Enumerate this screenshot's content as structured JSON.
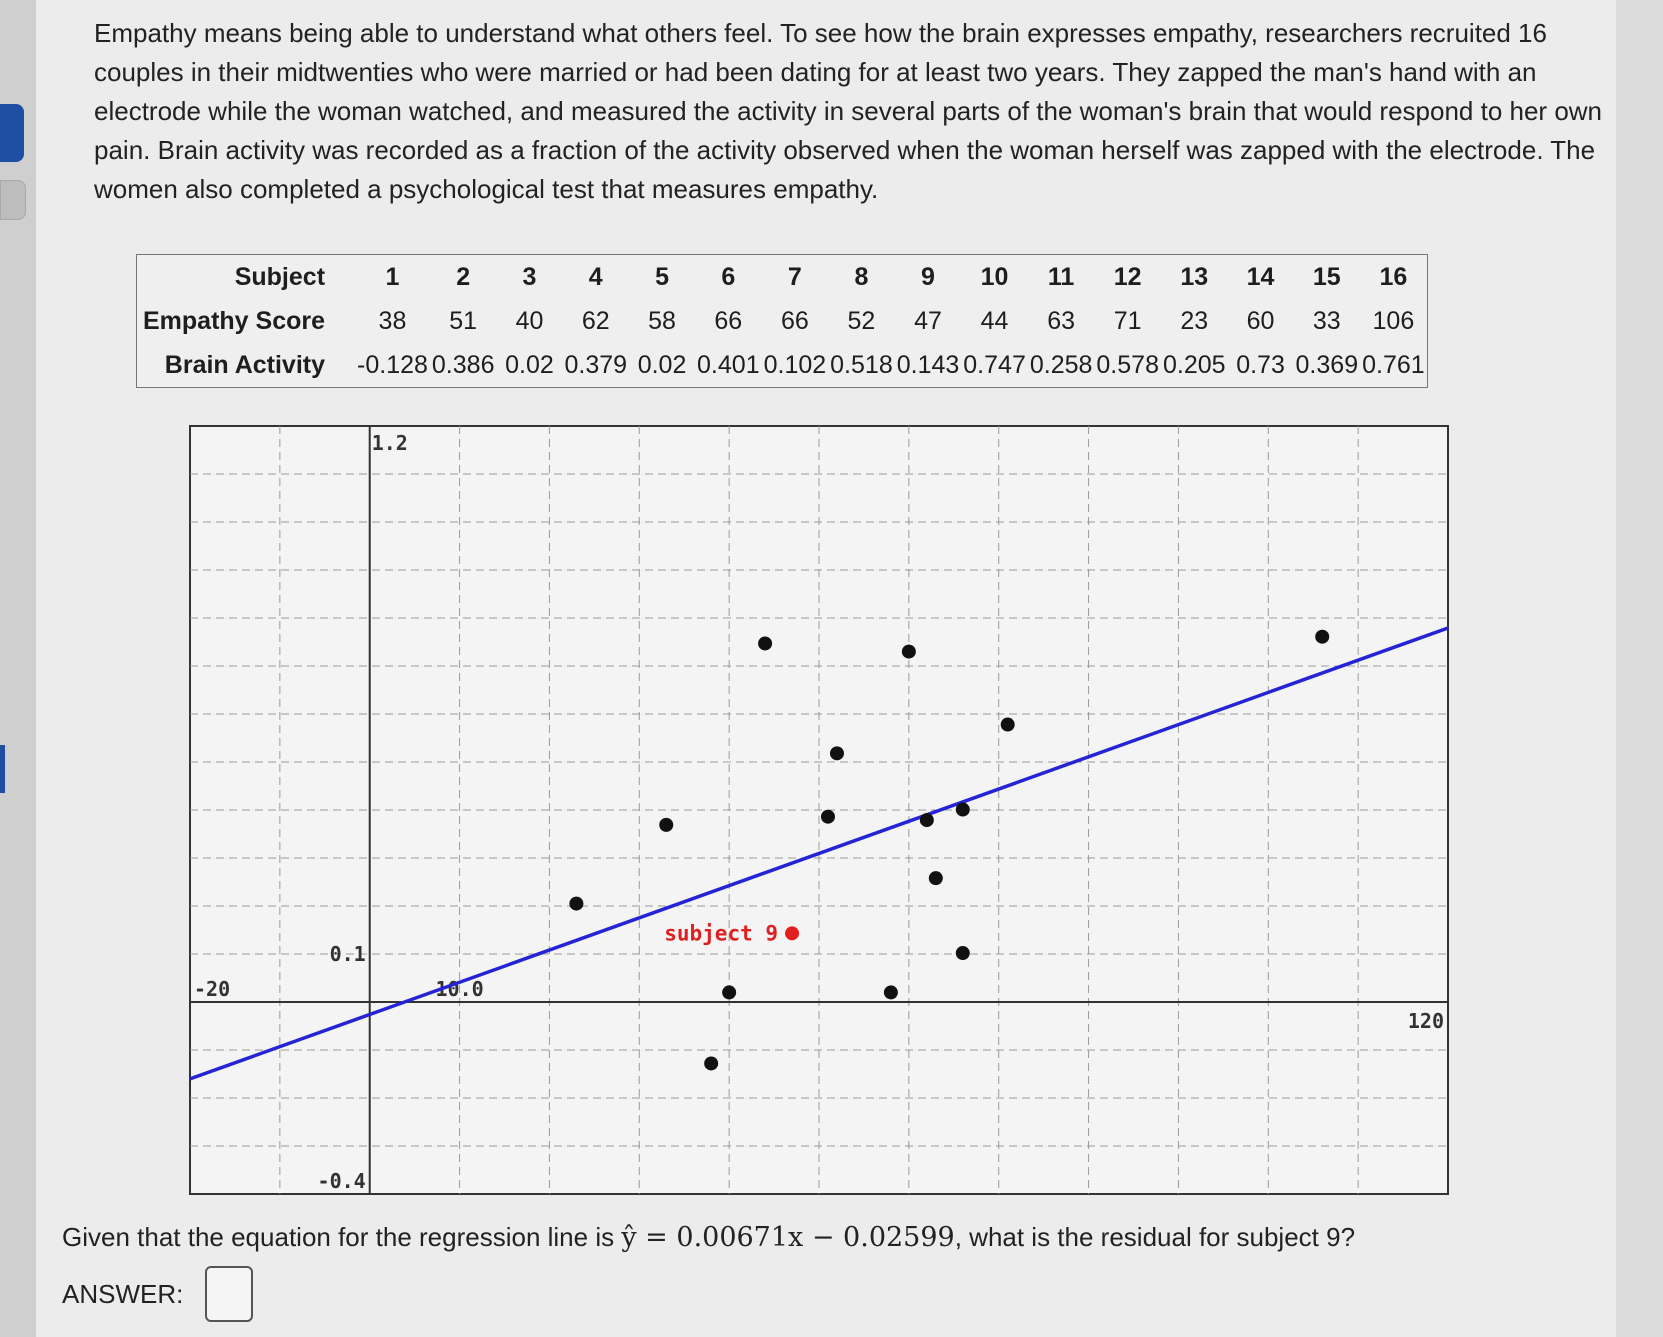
{
  "question": {
    "paragraph": "Empathy means being able to understand what others feel. To see how the brain expresses empathy, researchers recruited 16 couples in their midtwenties who were married or had been dating for at least two years. They zapped the man's hand with an electrode while the woman watched, and measured the activity in several parts of the woman's brain that would respond to her own pain. Brain activity was recorded as a fraction of the activity observed when the woman herself was zapped with the electrode. The women also completed a psychological test that measures empathy."
  },
  "table": {
    "row_labels": [
      "Subject",
      "Empathy Score",
      "Brain Activity"
    ],
    "subjects": [
      "1",
      "2",
      "3",
      "4",
      "5",
      "6",
      "7",
      "8",
      "9",
      "10",
      "11",
      "12",
      "13",
      "14",
      "15",
      "16"
    ],
    "empathy": [
      "38",
      "51",
      "40",
      "62",
      "58",
      "66",
      "66",
      "52",
      "47",
      "44",
      "63",
      "71",
      "23",
      "60",
      "33",
      "106"
    ],
    "brain": [
      "-0.128",
      "0.386",
      "0.02",
      "0.379",
      "0.02",
      "0.401",
      "0.102",
      "0.518",
      "0.143",
      "0.747",
      "0.258",
      "0.578",
      "0.205",
      "0.73",
      "0.369",
      "0.761"
    ]
  },
  "chart_data": {
    "type": "scatter",
    "xlim": [
      -20,
      120
    ],
    "ylim": [
      -0.4,
      1.2
    ],
    "grid": true,
    "x_tick_labels": [
      {
        "x": -20,
        "label": "-20"
      },
      {
        "x": 10,
        "label": "10.0"
      },
      {
        "x": 120,
        "label": "120"
      }
    ],
    "y_tick_labels": [
      {
        "y": 1.2,
        "label": "1.2"
      },
      {
        "y": 0.1,
        "label": "0.1"
      },
      {
        "y": -0.4,
        "label": "-0.4"
      }
    ],
    "points": [
      {
        "x": 38,
        "y": -0.128
      },
      {
        "x": 51,
        "y": 0.386
      },
      {
        "x": 40,
        "y": 0.02
      },
      {
        "x": 62,
        "y": 0.379
      },
      {
        "x": 58,
        "y": 0.02
      },
      {
        "x": 66,
        "y": 0.401
      },
      {
        "x": 66,
        "y": 0.102
      },
      {
        "x": 52,
        "y": 0.518
      },
      {
        "x": 44,
        "y": 0.747
      },
      {
        "x": 63,
        "y": 0.258
      },
      {
        "x": 71,
        "y": 0.578
      },
      {
        "x": 23,
        "y": 0.205
      },
      {
        "x": 60,
        "y": 0.73
      },
      {
        "x": 33,
        "y": 0.369
      },
      {
        "x": 106,
        "y": 0.761
      }
    ],
    "highlight": {
      "x": 47,
      "y": 0.143,
      "label": "subject 9",
      "color": "#e02020"
    },
    "regression": {
      "slope": 0.00671,
      "intercept": -0.02599,
      "color": "#2424d6"
    }
  },
  "prompt": {
    "before": "Given that the equation for the regression line is ",
    "equation": "ŷ = 0.00671x − 0.02599",
    "after": ", what is the residual for subject 9?"
  },
  "answer": {
    "label": "ANSWER:",
    "value": ""
  }
}
